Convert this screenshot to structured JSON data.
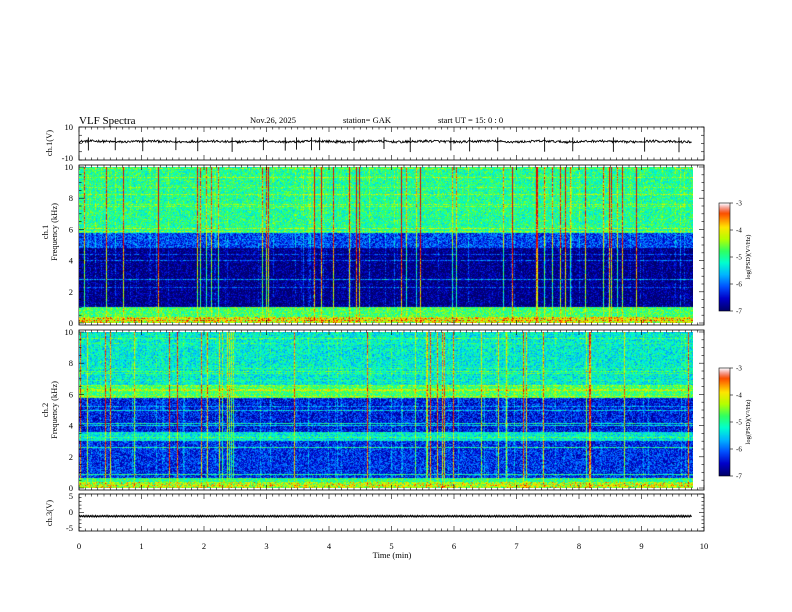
{
  "header": {
    "title": "VLF  Spectra",
    "date": "Nov.26, 2025",
    "station": "station= GAK",
    "start": "start  UT  =    15: 0   : 0"
  },
  "colors": {
    "palette": [
      "#00006a",
      "#0000c8",
      "#0050ff",
      "#00b4ff",
      "#00ffd0",
      "#30ff60",
      "#b4ff00",
      "#ffe600",
      "#ff6000",
      "#e00000",
      "#ffffff"
    ]
  },
  "chart_data": [
    {
      "type": "line",
      "id": "ch1_wave",
      "ylabel": "ch.1(V)",
      "ylim": [
        -10,
        10
      ],
      "yticks": [
        "10",
        "-10"
      ],
      "baseline_value": 1.2,
      "noise_amplitude": 0.7,
      "spikes_min": [
        0.15,
        0.58,
        1.02,
        1.55,
        1.9,
        2.45,
        2.95,
        3.3,
        3.48,
        3.72,
        3.85,
        4.4,
        4.88,
        5.3,
        5.95,
        6.25,
        6.7,
        7.45,
        7.9,
        8.55,
        9.05,
        9.6
      ]
    },
    {
      "type": "heatmap",
      "id": "ch1_spec",
      "ylabel": "ch.1\nFrequency  (kHz)",
      "ylim": [
        0,
        10
      ],
      "yticks": [
        "0",
        "2",
        "4",
        "6",
        "8",
        "10"
      ],
      "colorbar": {
        "label": "log(PSD)(V²/Hz)",
        "range": [
          -7,
          -3
        ],
        "ticks": [
          "-3",
          "-4",
          "-5",
          "-6",
          "-7"
        ]
      },
      "bands_khz": [
        {
          "from": 0.0,
          "to": 1.0,
          "level": -4.8,
          "desc": "strong low band"
        },
        {
          "from": 1.0,
          "to": 4.8,
          "level": -6.9,
          "desc": "quiet"
        },
        {
          "from": 4.8,
          "to": 5.8,
          "level": -6.2,
          "desc": "weak band"
        },
        {
          "from": 5.8,
          "to": 10.0,
          "level": -5.0,
          "desc": "noisy upper"
        }
      ]
    },
    {
      "type": "heatmap",
      "id": "ch2_spec",
      "ylabel": "ch.2\nFrequency  (kHz)",
      "ylim": [
        0,
        10
      ],
      "yticks": [
        "0",
        "2",
        "4",
        "6",
        "8",
        "10"
      ],
      "colorbar": {
        "label": "log(PSD)(V²/Hz)",
        "range": [
          -7,
          -3
        ],
        "ticks": [
          "-3",
          "-4",
          "-5",
          "-6",
          "-7"
        ]
      },
      "bands_khz": [
        {
          "from": 0.0,
          "to": 0.6,
          "level": -4.9,
          "desc": "strong low band"
        },
        {
          "from": 0.6,
          "to": 3.0,
          "level": -6.3,
          "desc": "mixed"
        },
        {
          "from": 3.0,
          "to": 3.6,
          "level": -5.3,
          "desc": "band"
        },
        {
          "from": 3.6,
          "to": 5.8,
          "level": -6.4,
          "desc": "mixed"
        },
        {
          "from": 5.8,
          "to": 6.6,
          "level": -4.8,
          "desc": "strong band"
        },
        {
          "from": 6.6,
          "to": 10.0,
          "level": -5.3,
          "desc": "noisy upper"
        }
      ]
    },
    {
      "type": "line",
      "id": "ch3_wave",
      "ylabel": "ch.3(V)",
      "ylim": [
        -5,
        5
      ],
      "yticks": [
        "5",
        "0",
        "-5"
      ],
      "baseline_value": -1.0,
      "noise_amplitude": 0.25
    }
  ],
  "x_axis": {
    "label": "Time  (min)",
    "range": [
      0,
      10
    ],
    "ticks": [
      "0",
      "1",
      "2",
      "3",
      "4",
      "5",
      "6",
      "7",
      "8",
      "9",
      "10"
    ],
    "data_end_min": 9.8
  }
}
